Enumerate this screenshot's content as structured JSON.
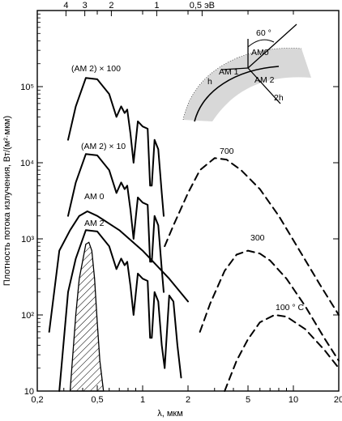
{
  "chart_data": {
    "type": "line",
    "xlabel": "λ, мкм",
    "ylabel": "Плотность потока излучения, Вт/(м²·мкм)",
    "x_scale": "log",
    "y_scale": "log",
    "xlim": [
      0.2,
      20
    ],
    "ylim": [
      10,
      1000000
    ],
    "x_ticks": [
      0.2,
      0.5,
      1,
      2,
      5,
      10,
      20
    ],
    "x_tick_labels": [
      "0,2",
      "0,5",
      "1",
      "2",
      "5",
      "10",
      "20"
    ],
    "y_ticks": [
      10,
      100,
      1000,
      10000,
      100000
    ],
    "y_tick_labels": [
      "10",
      "10²",
      "10³",
      "10⁴",
      "10⁵"
    ],
    "top_axis_ticks": [
      4,
      3,
      2,
      1,
      0.5
    ],
    "top_axis_labels": [
      "4",
      "3",
      "2",
      "1",
      "0,5 эВ"
    ],
    "series": [
      {
        "name": "(AM 2) × 100",
        "style": "solid",
        "x": [
          0.32,
          0.36,
          0.42,
          0.5,
          0.6,
          0.67,
          0.72,
          0.76,
          0.79,
          0.83,
          0.87,
          0.93,
          1.0,
          1.08,
          1.12,
          1.15,
          1.2,
          1.27,
          1.34,
          1.38
        ],
        "y": [
          20000,
          55000,
          130000,
          125000,
          80000,
          40000,
          55000,
          45000,
          50000,
          24000,
          10000,
          35000,
          30000,
          28000,
          5000,
          5000,
          20000,
          15000,
          4000,
          2000
        ]
      },
      {
        "name": "(AM 2) × 10",
        "style": "solid",
        "x": [
          0.32,
          0.36,
          0.42,
          0.5,
          0.6,
          0.67,
          0.72,
          0.76,
          0.79,
          0.83,
          0.87,
          0.93,
          1.0,
          1.08,
          1.12,
          1.15,
          1.2,
          1.27,
          1.34,
          1.38
        ],
        "y": [
          2000,
          5500,
          13000,
          12500,
          8000,
          4000,
          5500,
          4500,
          5000,
          2400,
          1000,
          3500,
          3000,
          2800,
          500,
          500,
          2000,
          1500,
          400,
          200
        ]
      },
      {
        "name": "AM 0",
        "style": "solid",
        "x": [
          0.24,
          0.28,
          0.33,
          0.38,
          0.43,
          0.5,
          0.7,
          1.0,
          1.5,
          2.0
        ],
        "y": [
          60,
          700,
          1300,
          2000,
          2300,
          2000,
          1300,
          700,
          300,
          150
        ]
      },
      {
        "name": "AM 2",
        "style": "solid",
        "x": [
          0.28,
          0.32,
          0.36,
          0.42,
          0.5,
          0.6,
          0.67,
          0.72,
          0.76,
          0.79,
          0.83,
          0.87,
          0.93,
          1.0,
          1.08,
          1.12,
          1.15,
          1.2,
          1.27,
          1.34,
          1.4,
          1.5,
          1.6,
          1.7,
          1.8
        ],
        "y": [
          10,
          200,
          550,
          1300,
          1250,
          800,
          400,
          550,
          450,
          500,
          240,
          100,
          350,
          300,
          280,
          50,
          50,
          200,
          150,
          40,
          20,
          180,
          150,
          40,
          15
        ]
      },
      {
        "name": "700",
        "style": "dashed",
        "x": [
          1.4,
          1.6,
          2.0,
          2.4,
          3.0,
          3.6,
          4.5,
          6.0,
          8.0,
          11.0,
          15.0,
          20.0
        ],
        "y": [
          800,
          1500,
          4000,
          8000,
          11500,
          11000,
          8000,
          4500,
          2000,
          700,
          250,
          100
        ]
      },
      {
        "name": "300",
        "style": "dashed",
        "x": [
          2.4,
          2.8,
          3.5,
          4.2,
          5.0,
          6.0,
          7.0,
          9.0,
          12.0,
          16.0,
          20.0
        ],
        "y": [
          60,
          140,
          380,
          620,
          700,
          640,
          520,
          300,
          130,
          50,
          25
        ]
      },
      {
        "name": "100 °C",
        "style": "dashed",
        "x": [
          3.5,
          4.2,
          5.0,
          6.0,
          7.5,
          9.0,
          12.0,
          16.0,
          20.0
        ],
        "y": [
          10,
          25,
          48,
          80,
          100,
          95,
          65,
          35,
          20
        ]
      },
      {
        "name": "",
        "style": "hatched-fill",
        "x": [
          0.33,
          0.36,
          0.38,
          0.42,
          0.44,
          0.46,
          0.48,
          0.5,
          0.52,
          0.55
        ],
        "y": [
          10,
          100,
          300,
          850,
          900,
          700,
          300,
          80,
          25,
          10
        ]
      }
    ],
    "series_labels": [
      "(AM 2) × 100",
      "(AM 2) × 10",
      "AM 0",
      "AM 2",
      "700",
      "300",
      "100 ° C"
    ],
    "inset": {
      "labels": [
        "60 °",
        "AM0",
        "AM 1",
        "AM 2",
        "h",
        "2h"
      ]
    }
  }
}
